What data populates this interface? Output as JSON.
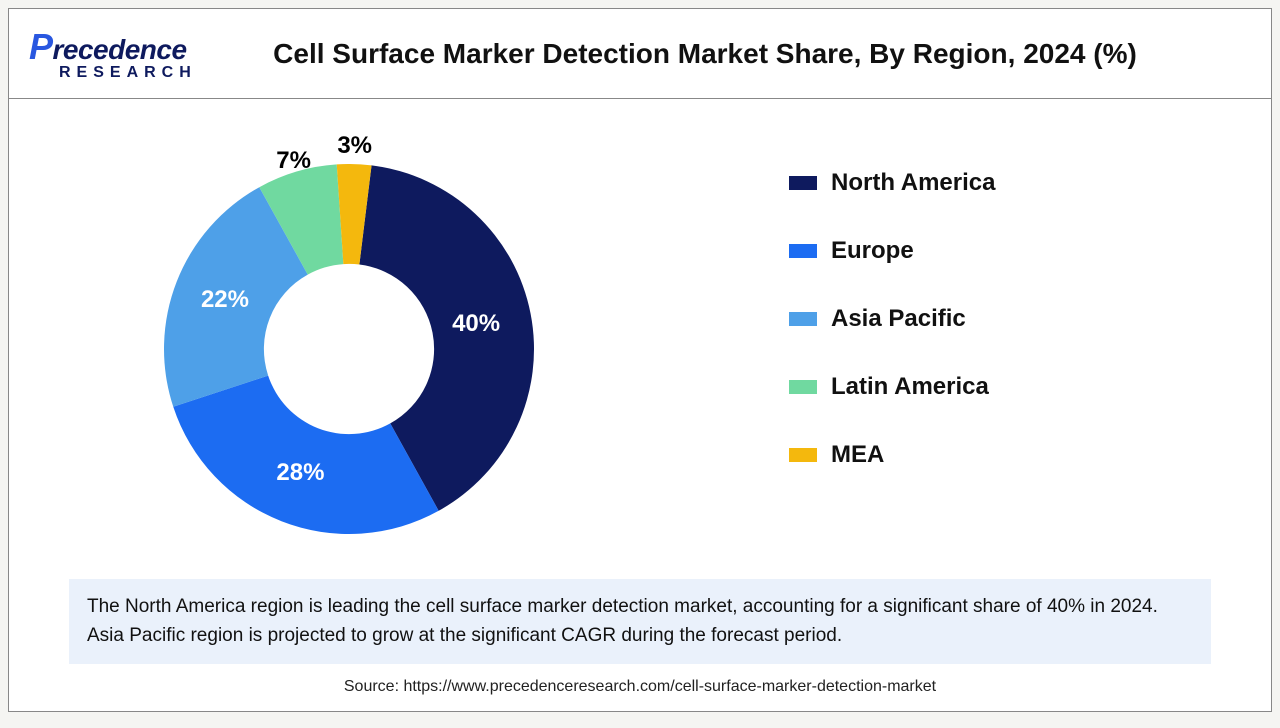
{
  "logo": {
    "line1_initial": "P",
    "line1_rest": "recedence",
    "line2": "RESEARCH"
  },
  "title": "Cell Surface Marker Detection Market Share, By Region, 2024 (%)",
  "chart": {
    "type": "donut",
    "start_angle_deg": 7,
    "inner_radius_ratio": 0.46,
    "background_color": "#ffffff",
    "label_fontsize": 24,
    "label_fontweight": 800,
    "slices": [
      {
        "name": "North America",
        "value": 40,
        "color": "#0e1a5e",
        "label": "40%",
        "label_color": "#ffffff",
        "label_r": 0.7
      },
      {
        "name": "Europe",
        "value": 28,
        "color": "#1c6cf2",
        "label": "28%",
        "label_color": "#ffffff",
        "label_r": 0.72
      },
      {
        "name": "Asia Pacific",
        "value": 22,
        "color": "#4ea0e8",
        "label": "22%",
        "label_color": "#ffffff",
        "label_r": 0.72
      },
      {
        "name": "Latin America",
        "value": 7,
        "color": "#70d9a0",
        "label": "7%",
        "label_color": "#000000",
        "label_r": 1.06
      },
      {
        "name": "MEA",
        "value": 3,
        "color": "#f4b80d",
        "label": "3%",
        "label_color": "#000000",
        "label_r": 1.1
      }
    ]
  },
  "legend": {
    "items": [
      {
        "label": "North America",
        "color": "#0e1a5e"
      },
      {
        "label": "Europe",
        "color": "#1c6cf2"
      },
      {
        "label": "Asia Pacific",
        "color": "#4ea0e8"
      },
      {
        "label": "Latin America",
        "color": "#70d9a0"
      },
      {
        "label": "MEA",
        "color": "#f4b80d"
      }
    ],
    "swatch_w": 28,
    "swatch_h": 14,
    "fontsize": 24,
    "fontweight": 800
  },
  "caption": "The North America region is leading the cell surface marker detection market, accounting for a significant share of 40% in 2024. Asia Pacific region is projected to grow at the significant CAGR during the forecast period.",
  "caption_bg": "#eaf1fb",
  "source": "Source: https://www.precedenceresearch.com/cell-surface-marker-detection-market"
}
